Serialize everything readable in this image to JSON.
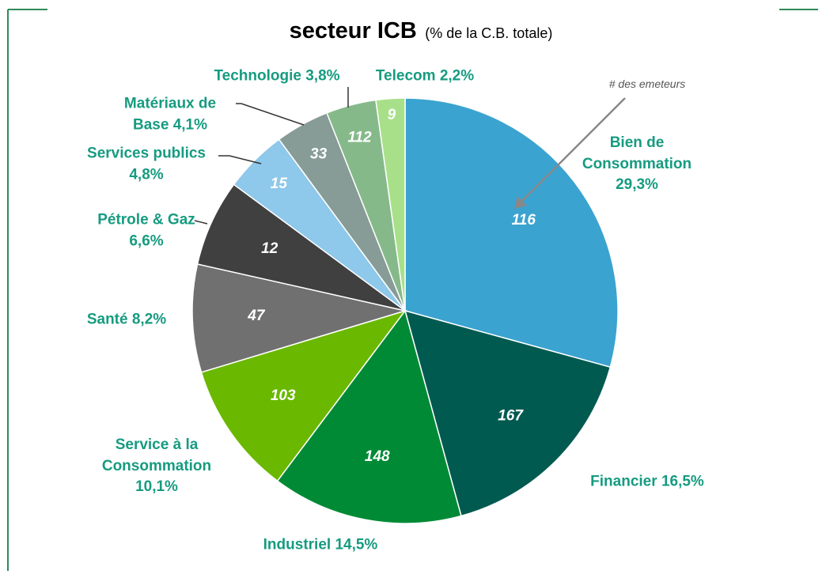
{
  "chart_data": {
    "type": "pie",
    "title": "secteur ICB",
    "subtitle": "(% de la C.B. totale)",
    "annotation": "# des emeteurs",
    "categories": [
      "Bien de Consommation",
      "Financier",
      "Industriel",
      "Service à la Consommation",
      "Santé",
      "Pétrole & Gaz",
      "Services publics",
      "Matériaux de Base",
      "Technologie",
      "Telecom"
    ],
    "values": [
      29.3,
      16.5,
      14.5,
      10.1,
      8.2,
      6.6,
      4.8,
      4.1,
      3.8,
      2.2
    ],
    "value_labels": [
      "29,3%",
      "16,5%",
      "14,5%",
      "10,1%",
      "8,2%",
      "6,6%",
      "4,8%",
      "4,1%",
      "3,8%",
      "2,2%"
    ],
    "counts": [
      116,
      167,
      148,
      103,
      47,
      12,
      15,
      33,
      112,
      9
    ],
    "colors": [
      "#3ba3d0",
      "#005a50",
      "#008a35",
      "#6ab800",
      "#707070",
      "#404040",
      "#8ec8ea",
      "#879c96",
      "#86b98a",
      "#a8e08a"
    ]
  }
}
